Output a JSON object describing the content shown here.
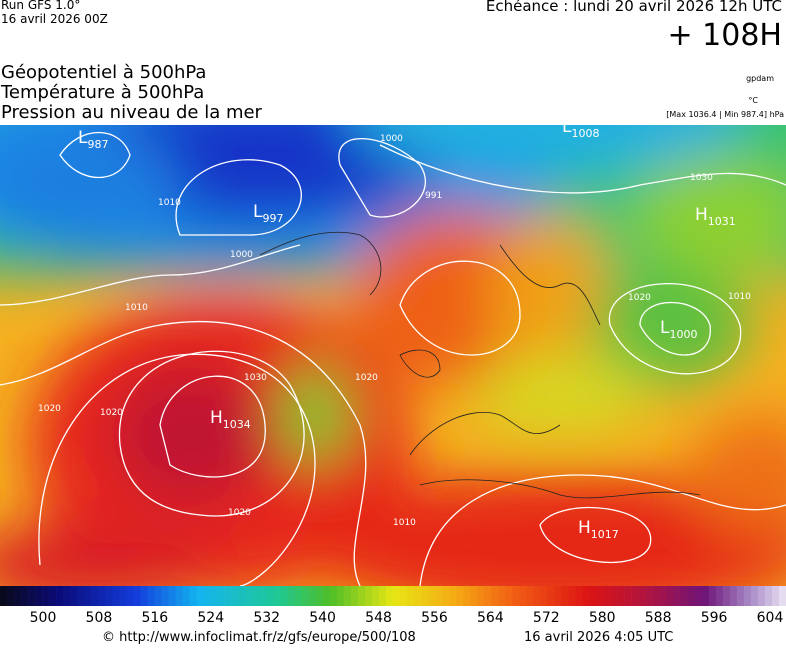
{
  "header": {
    "run": "Run GFS 1.0°",
    "run_date": "16 avril 2026 00Z",
    "forecast": "Echéance : lundi 20 avril 2026 12h UTC",
    "lead": "+ 108H"
  },
  "titles": [
    "Géopotentiel à 500hPa",
    "Température à 500hPa",
    "Pression au niveau de la mer"
  ],
  "units": {
    "geopotential": "gpdam",
    "temperature": "°C",
    "pressure_range": "[Max 1036.4 | Min 987.4] hPa"
  },
  "centers": [
    {
      "letter": "H",
      "value": "1034"
    },
    {
      "letter": "H",
      "value": "1031"
    },
    {
      "letter": "L",
      "value": "1000"
    },
    {
      "letter": "H",
      "value": "1017"
    },
    {
      "letter": "L",
      "value": "1008"
    },
    {
      "letter": "L",
      "value": "987"
    },
    {
      "letter": "L",
      "value": "997"
    }
  ],
  "contour_labels": [
    "1030",
    "1020",
    "1020",
    "1010",
    "1010",
    "1000",
    "1000",
    "991",
    "1030",
    "1010",
    "1020",
    "1020",
    "1010",
    "1020"
  ],
  "colorbar": {
    "labels": [
      500,
      508,
      516,
      524,
      532,
      540,
      548,
      556,
      564,
      572,
      580,
      588,
      596,
      604
    ]
  },
  "footer": {
    "url": "© http://www.infoclimat.fr/z/gfs/europe/500/108",
    "time": "16 avril 2026  4:05 UTC"
  }
}
